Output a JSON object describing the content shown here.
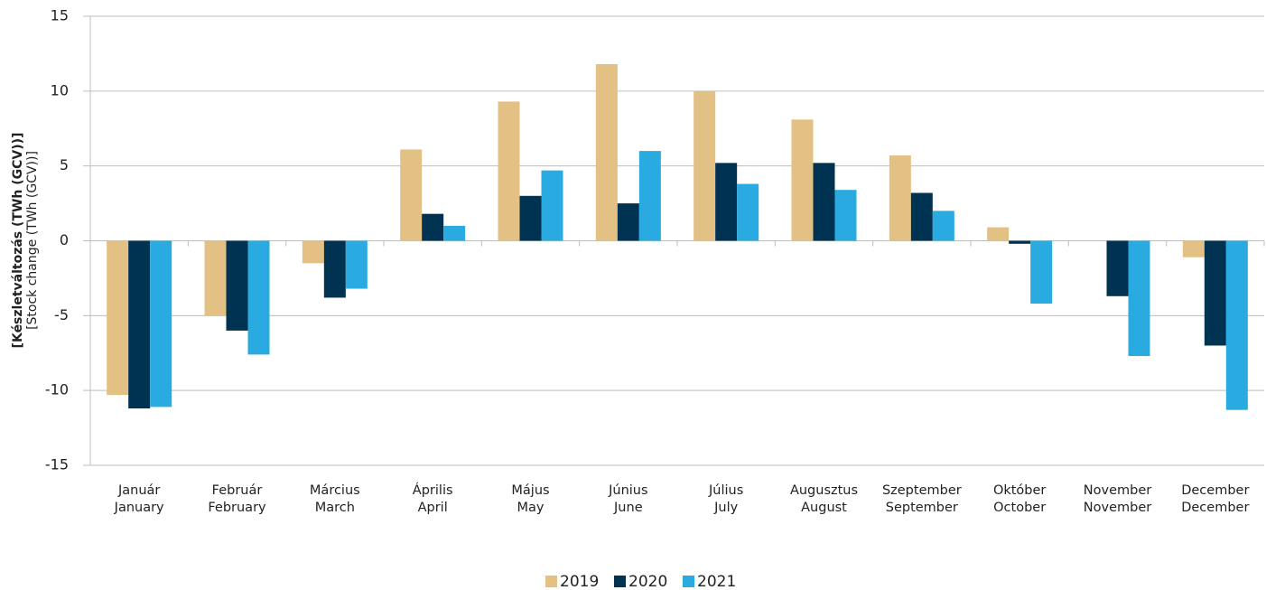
{
  "chart_data": {
    "type": "bar",
    "ylabel": [
      "[Készletváltozás (TWh (GCV))]",
      "[Stock change (TWh (GCV))]"
    ],
    "categories": [
      [
        "Január",
        "January"
      ],
      [
        "Február",
        "February"
      ],
      [
        "Március",
        "March"
      ],
      [
        "Április",
        "April"
      ],
      [
        "Május",
        "May"
      ],
      [
        "Június",
        "June"
      ],
      [
        "Július",
        "July"
      ],
      [
        "Augusztus",
        "August"
      ],
      [
        "Szeptember",
        "September"
      ],
      [
        "Október",
        "October"
      ],
      [
        "November",
        "November"
      ],
      [
        "December",
        "December"
      ]
    ],
    "series": [
      {
        "name": "2019",
        "color": "#e3c084",
        "values": [
          -10.3,
          -5.0,
          -1.5,
          6.1,
          9.3,
          11.8,
          10.0,
          8.1,
          5.7,
          0.9,
          0,
          -1.1
        ]
      },
      {
        "name": "2020",
        "color": "#003351",
        "values": [
          -11.2,
          -6.0,
          -3.8,
          1.8,
          3.0,
          2.5,
          5.2,
          5.2,
          3.2,
          -0.2,
          -3.7,
          -7.0
        ]
      },
      {
        "name": "2021",
        "color": "#29abe2",
        "values": [
          -11.1,
          -7.6,
          -3.2,
          1.0,
          4.7,
          6.0,
          3.8,
          3.4,
          2.0,
          -4.2,
          -7.7,
          -11.3
        ]
      }
    ],
    "ylim": [
      -15,
      15
    ],
    "yticks": [
      -15,
      -10,
      -5,
      0,
      5,
      10,
      15
    ],
    "grid": true,
    "legend": "bottom"
  }
}
